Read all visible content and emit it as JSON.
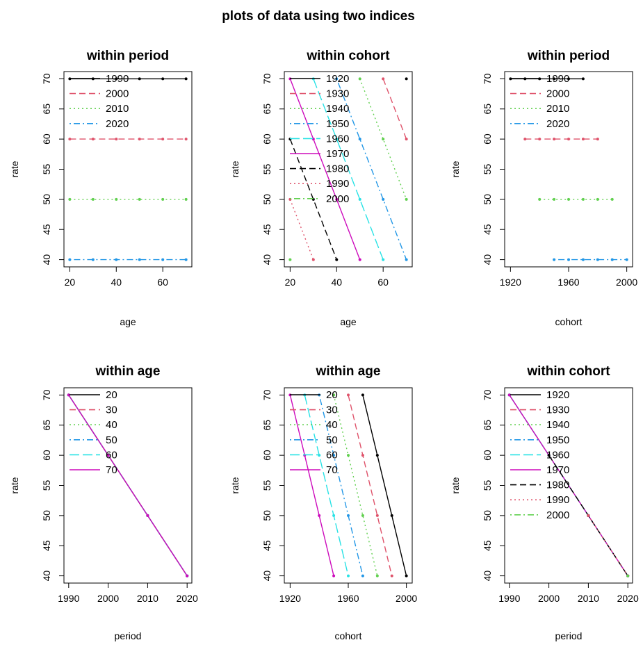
{
  "title": "plots of data using two indices",
  "colors": {
    "palette": [
      "#000000",
      "#DF536B",
      "#61D04F",
      "#2297E6",
      "#28E2E5",
      "#CD0BBC",
      "#000000",
      "#DF536B",
      "#61D04F"
    ],
    "dashes": [
      "solid",
      "dashed",
      "dotted",
      "dotdash",
      "longdash",
      "solid",
      "dashed",
      "dotted",
      "dotdash"
    ]
  },
  "chart_data": [
    {
      "type": "line",
      "title": "within period",
      "xlabel": "age",
      "ylabel": "rate",
      "xlim": [
        17.5,
        72.5
      ],
      "ylim": [
        38.8,
        71.2
      ],
      "xticks": [
        20,
        40,
        60
      ],
      "yticks": [
        40,
        45,
        50,
        55,
        60,
        65,
        70
      ],
      "legend": "top-left",
      "series": [
        {
          "name": "1990",
          "x": [
            20,
            30,
            40,
            50,
            60,
            70
          ],
          "y": [
            70,
            70,
            70,
            70,
            70,
            70
          ]
        },
        {
          "name": "2000",
          "x": [
            20,
            30,
            40,
            50,
            60,
            70
          ],
          "y": [
            60,
            60,
            60,
            60,
            60,
            60
          ]
        },
        {
          "name": "2010",
          "x": [
            20,
            30,
            40,
            50,
            60,
            70
          ],
          "y": [
            50,
            50,
            50,
            50,
            50,
            50
          ]
        },
        {
          "name": "2020",
          "x": [
            20,
            30,
            40,
            50,
            60,
            70
          ],
          "y": [
            40,
            40,
            40,
            40,
            40,
            40
          ]
        }
      ]
    },
    {
      "type": "line",
      "title": "within cohort",
      "xlabel": "age",
      "ylabel": "rate",
      "xlim": [
        17.5,
        72.5
      ],
      "ylim": [
        38.8,
        71.2
      ],
      "xticks": [
        20,
        40,
        60
      ],
      "yticks": [
        40,
        45,
        50,
        55,
        60,
        65,
        70
      ],
      "legend": "top-left",
      "series": [
        {
          "name": "1920",
          "x": [
            70
          ],
          "y": [
            70
          ]
        },
        {
          "name": "1930",
          "x": [
            60,
            70
          ],
          "y": [
            70,
            60
          ]
        },
        {
          "name": "1940",
          "x": [
            50,
            60,
            70
          ],
          "y": [
            70,
            60,
            50
          ]
        },
        {
          "name": "1950",
          "x": [
            40,
            50,
            60,
            70
          ],
          "y": [
            70,
            60,
            50,
            40
          ]
        },
        {
          "name": "1960",
          "x": [
            30,
            40,
            50,
            60
          ],
          "y": [
            70,
            60,
            50,
            40
          ]
        },
        {
          "name": "1970",
          "x": [
            20,
            30,
            40,
            50
          ],
          "y": [
            70,
            60,
            50,
            40
          ]
        },
        {
          "name": "1980",
          "x": [
            20,
            30,
            40
          ],
          "y": [
            60,
            50,
            40
          ]
        },
        {
          "name": "1990",
          "x": [
            20,
            30
          ],
          "y": [
            50,
            40
          ]
        },
        {
          "name": "2000",
          "x": [
            20
          ],
          "y": [
            40
          ]
        }
      ]
    },
    {
      "type": "line",
      "title": "within period",
      "xlabel": "cohort",
      "ylabel": "rate",
      "xlim": [
        1916,
        2004
      ],
      "ylim": [
        38.8,
        71.2
      ],
      "xticks": [
        1920,
        1960,
        2000
      ],
      "yticks": [
        40,
        45,
        50,
        55,
        60,
        65,
        70
      ],
      "legend": "top-left",
      "series": [
        {
          "name": "1990",
          "x": [
            1920,
            1930,
            1940,
            1950,
            1960,
            1970
          ],
          "y": [
            70,
            70,
            70,
            70,
            70,
            70
          ]
        },
        {
          "name": "2000",
          "x": [
            1930,
            1940,
            1950,
            1960,
            1970,
            1980
          ],
          "y": [
            60,
            60,
            60,
            60,
            60,
            60
          ]
        },
        {
          "name": "2010",
          "x": [
            1940,
            1950,
            1960,
            1970,
            1980,
            1990
          ],
          "y": [
            50,
            50,
            50,
            50,
            50,
            50
          ]
        },
        {
          "name": "2020",
          "x": [
            1950,
            1960,
            1970,
            1980,
            1990,
            2000
          ],
          "y": [
            40,
            40,
            40,
            40,
            40,
            40
          ]
        }
      ]
    },
    {
      "type": "line",
      "title": "within age",
      "xlabel": "period",
      "ylabel": "rate",
      "xlim": [
        1988.8,
        2021.2
      ],
      "ylim": [
        38.8,
        71.2
      ],
      "xticks": [
        1990,
        2000,
        2010,
        2020
      ],
      "yticks": [
        40,
        45,
        50,
        55,
        60,
        65,
        70
      ],
      "legend": "top-left",
      "series": [
        {
          "name": "20",
          "x": [
            1990,
            2000,
            2010,
            2020
          ],
          "y": [
            70,
            60,
            50,
            40
          ]
        },
        {
          "name": "30",
          "x": [
            1990,
            2000,
            2010,
            2020
          ],
          "y": [
            70,
            60,
            50,
            40
          ]
        },
        {
          "name": "40",
          "x": [
            1990,
            2000,
            2010,
            2020
          ],
          "y": [
            70,
            60,
            50,
            40
          ]
        },
        {
          "name": "50",
          "x": [
            1990,
            2000,
            2010,
            2020
          ],
          "y": [
            70,
            60,
            50,
            40
          ]
        },
        {
          "name": "60",
          "x": [
            1990,
            2000,
            2010,
            2020
          ],
          "y": [
            70,
            60,
            50,
            40
          ]
        },
        {
          "name": "70",
          "x": [
            1990,
            2000,
            2010,
            2020
          ],
          "y": [
            70,
            60,
            50,
            40
          ]
        }
      ]
    },
    {
      "type": "line",
      "title": "within age",
      "xlabel": "cohort",
      "ylabel": "rate",
      "xlim": [
        1916,
        2004
      ],
      "ylim": [
        38.8,
        71.2
      ],
      "xticks": [
        1920,
        1960,
        2000
      ],
      "yticks": [
        40,
        45,
        50,
        55,
        60,
        65,
        70
      ],
      "legend": "top-left",
      "series": [
        {
          "name": "20",
          "x": [
            1970,
            1980,
            1990,
            2000
          ],
          "y": [
            70,
            60,
            50,
            40
          ]
        },
        {
          "name": "30",
          "x": [
            1960,
            1970,
            1980,
            1990
          ],
          "y": [
            70,
            60,
            50,
            40
          ]
        },
        {
          "name": "40",
          "x": [
            1950,
            1960,
            1970,
            1980
          ],
          "y": [
            70,
            60,
            50,
            40
          ]
        },
        {
          "name": "50",
          "x": [
            1940,
            1950,
            1960,
            1970
          ],
          "y": [
            70,
            60,
            50,
            40
          ]
        },
        {
          "name": "60",
          "x": [
            1930,
            1940,
            1950,
            1960
          ],
          "y": [
            70,
            60,
            50,
            40
          ]
        },
        {
          "name": "70",
          "x": [
            1920,
            1930,
            1940,
            1950
          ],
          "y": [
            70,
            60,
            50,
            40
          ]
        }
      ]
    },
    {
      "type": "line",
      "title": "within cohort",
      "xlabel": "period",
      "ylabel": "rate",
      "xlim": [
        1988.8,
        2021.2
      ],
      "ylim": [
        38.8,
        71.2
      ],
      "xticks": [
        1990,
        2000,
        2010,
        2020
      ],
      "yticks": [
        40,
        45,
        50,
        55,
        60,
        65,
        70
      ],
      "legend": "top-left",
      "series": [
        {
          "name": "1920",
          "x": [
            1990
          ],
          "y": [
            70
          ]
        },
        {
          "name": "1930",
          "x": [
            1990,
            2000
          ],
          "y": [
            70,
            60
          ]
        },
        {
          "name": "1940",
          "x": [
            1990,
            2000,
            2010
          ],
          "y": [
            70,
            60,
            50
          ]
        },
        {
          "name": "1950",
          "x": [
            1990,
            2000,
            2010,
            2020
          ],
          "y": [
            70,
            60,
            50,
            40
          ]
        },
        {
          "name": "1960",
          "x": [
            1990,
            2000,
            2010,
            2020
          ],
          "y": [
            70,
            60,
            50,
            40
          ]
        },
        {
          "name": "1970",
          "x": [
            1990,
            2000,
            2010,
            2020
          ],
          "y": [
            70,
            60,
            50,
            40
          ]
        },
        {
          "name": "1980",
          "x": [
            2000,
            2010,
            2020
          ],
          "y": [
            60,
            50,
            40
          ]
        },
        {
          "name": "1990",
          "x": [
            2010,
            2020
          ],
          "y": [
            50,
            40
          ]
        },
        {
          "name": "2000",
          "x": [
            2020
          ],
          "y": [
            40
          ]
        }
      ]
    }
  ]
}
